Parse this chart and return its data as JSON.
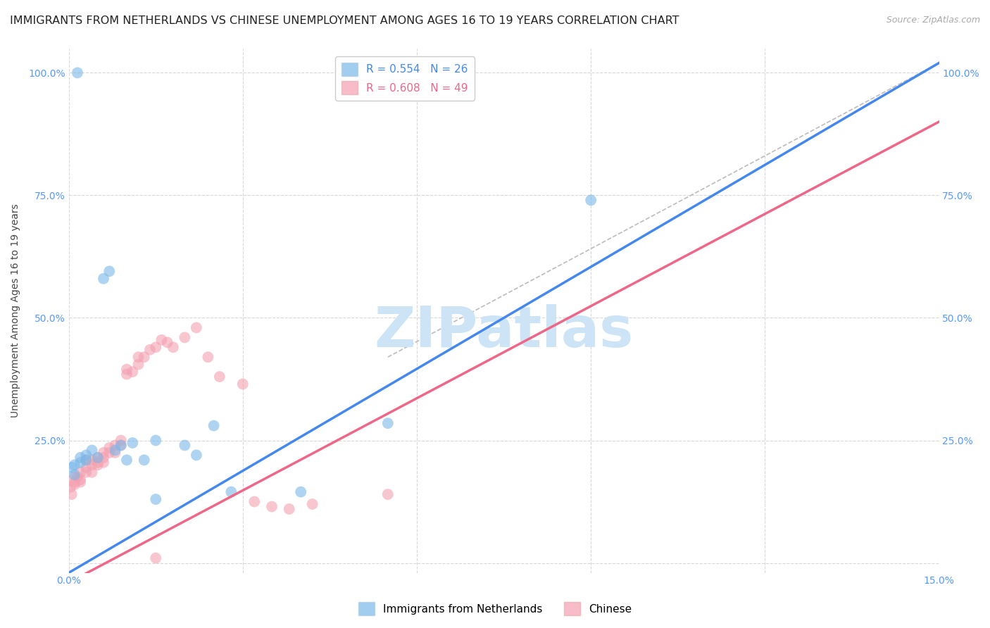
{
  "title": "IMMIGRANTS FROM NETHERLANDS VS CHINESE UNEMPLOYMENT AMONG AGES 16 TO 19 YEARS CORRELATION CHART",
  "source": "Source: ZipAtlas.com",
  "ylabel": "Unemployment Among Ages 16 to 19 years",
  "x_min": 0.0,
  "x_max": 0.15,
  "y_min": -0.02,
  "y_max": 1.05,
  "x_ticks": [
    0.0,
    0.03,
    0.06,
    0.09,
    0.12,
    0.15
  ],
  "x_tick_labels": [
    "0.0%",
    "",
    "",
    "",
    "",
    "15.0%"
  ],
  "y_ticks": [
    0.0,
    0.25,
    0.5,
    0.75,
    1.0
  ],
  "y_tick_labels": [
    "",
    "25.0%",
    "50.0%",
    "75.0%",
    "100.0%"
  ],
  "netherlands_color": "#7ab8e8",
  "chinese_color": "#f4a0b0",
  "netherlands_line_color": "#4488ee",
  "chinese_line_color": "#ee6688",
  "netherlands_R": 0.554,
  "netherlands_N": 26,
  "chinese_R": 0.608,
  "chinese_N": 49,
  "nl_x": [
    0.0005,
    0.001,
    0.001,
    0.0015,
    0.002,
    0.002,
    0.003,
    0.003,
    0.004,
    0.005,
    0.006,
    0.007,
    0.008,
    0.009,
    0.01,
    0.011,
    0.013,
    0.015,
    0.02,
    0.022,
    0.025,
    0.028,
    0.04,
    0.055,
    0.09,
    0.015
  ],
  "nl_y": [
    0.195,
    0.18,
    0.2,
    1.0,
    0.205,
    0.215,
    0.22,
    0.21,
    0.23,
    0.215,
    0.58,
    0.595,
    0.23,
    0.24,
    0.21,
    0.245,
    0.21,
    0.25,
    0.24,
    0.22,
    0.28,
    0.145,
    0.145,
    0.285,
    0.74,
    0.13
  ],
  "ch_x": [
    0.0003,
    0.0005,
    0.001,
    0.001,
    0.001,
    0.0015,
    0.002,
    0.002,
    0.002,
    0.003,
    0.003,
    0.003,
    0.004,
    0.004,
    0.004,
    0.005,
    0.005,
    0.005,
    0.006,
    0.006,
    0.006,
    0.007,
    0.007,
    0.008,
    0.008,
    0.009,
    0.009,
    0.01,
    0.01,
    0.011,
    0.012,
    0.012,
    0.013,
    0.014,
    0.015,
    0.016,
    0.017,
    0.018,
    0.02,
    0.022,
    0.024,
    0.026,
    0.03,
    0.032,
    0.035,
    0.038,
    0.042,
    0.055,
    0.015
  ],
  "ch_y": [
    0.155,
    0.14,
    0.16,
    0.175,
    0.165,
    0.175,
    0.17,
    0.185,
    0.165,
    0.185,
    0.195,
    0.21,
    0.2,
    0.185,
    0.21,
    0.205,
    0.215,
    0.2,
    0.225,
    0.215,
    0.205,
    0.235,
    0.225,
    0.24,
    0.225,
    0.24,
    0.25,
    0.385,
    0.395,
    0.39,
    0.42,
    0.405,
    0.42,
    0.435,
    0.44,
    0.455,
    0.45,
    0.44,
    0.46,
    0.48,
    0.42,
    0.38,
    0.365,
    0.125,
    0.115,
    0.11,
    0.12,
    0.14,
    0.01
  ],
  "nl_trend": [
    0.0,
    0.15,
    -0.02,
    1.02
  ],
  "ch_trend": [
    0.0,
    0.15,
    -0.04,
    0.9
  ],
  "dash_line": [
    0.055,
    0.15,
    0.42,
    1.02
  ],
  "background_color": "#ffffff",
  "grid_color": "#d8d8d8",
  "watermark_text": "ZIPatlas",
  "watermark_color": "#cce4f5",
  "title_fontsize": 11.5,
  "axis_label_fontsize": 10,
  "tick_label_fontsize": 10,
  "legend_fontsize": 11,
  "source_fontsize": 9
}
